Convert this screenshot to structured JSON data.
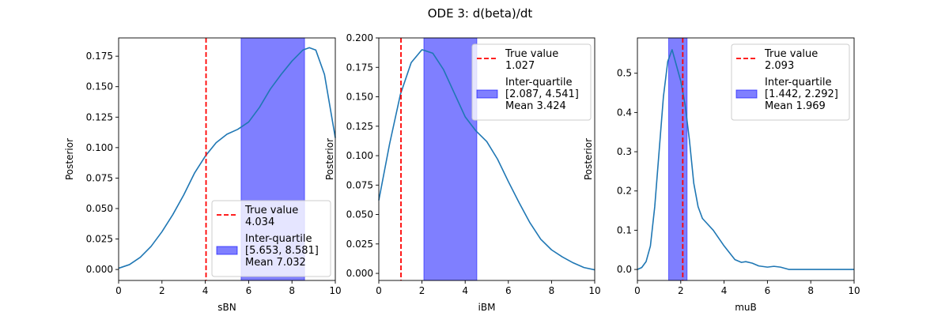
{
  "figure": {
    "title": "ODE 3: d(beta)/dt"
  },
  "chart_data": [
    {
      "type": "line",
      "xlabel": "sBN",
      "ylabel": "Posterior",
      "xlim": [
        0,
        10
      ],
      "ylim": [
        -0.009,
        0.19
      ],
      "xticks": [
        "0",
        "2",
        "4",
        "6",
        "8",
        "10"
      ],
      "yticks": [
        "0.000",
        "0.025",
        "0.050",
        "0.075",
        "0.100",
        "0.125",
        "0.150",
        "0.175"
      ],
      "ytick_values": [
        0,
        0.025,
        0.05,
        0.075,
        0.1,
        0.125,
        0.15,
        0.175
      ],
      "grid": false,
      "legend_position": "lower-right",
      "true_value": 4.034,
      "true_value_label": "True value",
      "true_value_text": "4.034",
      "interquartile": [
        5.653,
        8.581
      ],
      "interquartile_label": "Inter-quartile",
      "interquartile_text": "[5.653, 8.581]",
      "mean_text": "Mean 7.032",
      "series": [
        {
          "x": [
            0,
            0.5,
            1,
            1.5,
            2,
            2.5,
            3,
            3.5,
            4,
            4.5,
            5,
            5.5,
            6,
            6.5,
            7,
            7.5,
            8,
            8.5,
            8.8,
            9.1,
            9.5,
            10
          ],
          "y": [
            0.001,
            0.004,
            0.01,
            0.019,
            0.031,
            0.045,
            0.061,
            0.079,
            0.093,
            0.104,
            0.111,
            0.115,
            0.121,
            0.133,
            0.148,
            0.16,
            0.171,
            0.18,
            0.182,
            0.18,
            0.16,
            0.108
          ]
        }
      ]
    },
    {
      "type": "line",
      "xlabel": "iBM",
      "ylabel": "Posterior",
      "xlim": [
        0,
        10
      ],
      "ylim": [
        -0.006,
        0.2
      ],
      "xticks": [
        "0",
        "2",
        "4",
        "6",
        "8",
        "10"
      ],
      "yticks": [
        "0.000",
        "0.025",
        "0.050",
        "0.075",
        "0.100",
        "0.125",
        "0.150",
        "0.175",
        "0.200"
      ],
      "ytick_values": [
        0,
        0.025,
        0.05,
        0.075,
        0.1,
        0.125,
        0.15,
        0.175,
        0.2
      ],
      "grid": false,
      "legend_position": "upper-right",
      "true_value": 1.027,
      "true_value_label": "True value",
      "true_value_text": "1.027",
      "interquartile": [
        2.087,
        4.541
      ],
      "interquartile_label": "Inter-quartile",
      "interquartile_text": "[2.087, 4.541]",
      "mean_text": "Mean 3.424",
      "series": [
        {
          "x": [
            0,
            0.5,
            1,
            1.5,
            2,
            2.5,
            3,
            3.5,
            4,
            4.5,
            5,
            5.5,
            6,
            6.5,
            7,
            7.5,
            8,
            8.5,
            9,
            9.5,
            10
          ],
          "y": [
            0.062,
            0.11,
            0.152,
            0.179,
            0.19,
            0.187,
            0.173,
            0.153,
            0.133,
            0.121,
            0.112,
            0.097,
            0.078,
            0.06,
            0.043,
            0.029,
            0.02,
            0.014,
            0.009,
            0.005,
            0.003
          ]
        }
      ]
    },
    {
      "type": "line",
      "xlabel": "muB",
      "ylabel": "Posterior",
      "xlim": [
        0,
        10
      ],
      "ylim": [
        -0.028,
        0.59
      ],
      "xticks": [
        "0",
        "2",
        "4",
        "6",
        "8",
        "10"
      ],
      "yticks": [
        "0.0",
        "0.1",
        "0.2",
        "0.3",
        "0.4",
        "0.5"
      ],
      "ytick_values": [
        0,
        0.1,
        0.2,
        0.3,
        0.4,
        0.5
      ],
      "grid": false,
      "legend_position": "upper-right",
      "true_value": 2.093,
      "true_value_label": "True value",
      "true_value_text": "2.093",
      "interquartile": [
        1.442,
        2.292
      ],
      "interquartile_label": "Inter-quartile",
      "interquartile_text": "[1.442, 2.292]",
      "mean_text": "Mean 1.969",
      "series": [
        {
          "x": [
            0,
            0.2,
            0.4,
            0.6,
            0.8,
            1.0,
            1.2,
            1.4,
            1.6,
            1.8,
            2.0,
            2.2,
            2.4,
            2.6,
            2.8,
            3.0,
            3.5,
            4.0,
            4.5,
            4.8,
            5.0,
            5.3,
            5.6,
            6.0,
            6.3,
            6.6,
            7.0,
            7.5,
            8,
            9,
            10
          ],
          "y": [
            0.0,
            0.005,
            0.02,
            0.06,
            0.16,
            0.3,
            0.44,
            0.53,
            0.56,
            0.52,
            0.48,
            0.42,
            0.33,
            0.22,
            0.16,
            0.13,
            0.1,
            0.06,
            0.025,
            0.018,
            0.02,
            0.016,
            0.009,
            0.006,
            0.008,
            0.006,
            0.0,
            0.0,
            0.0,
            0.0,
            0.0
          ]
        }
      ]
    }
  ]
}
